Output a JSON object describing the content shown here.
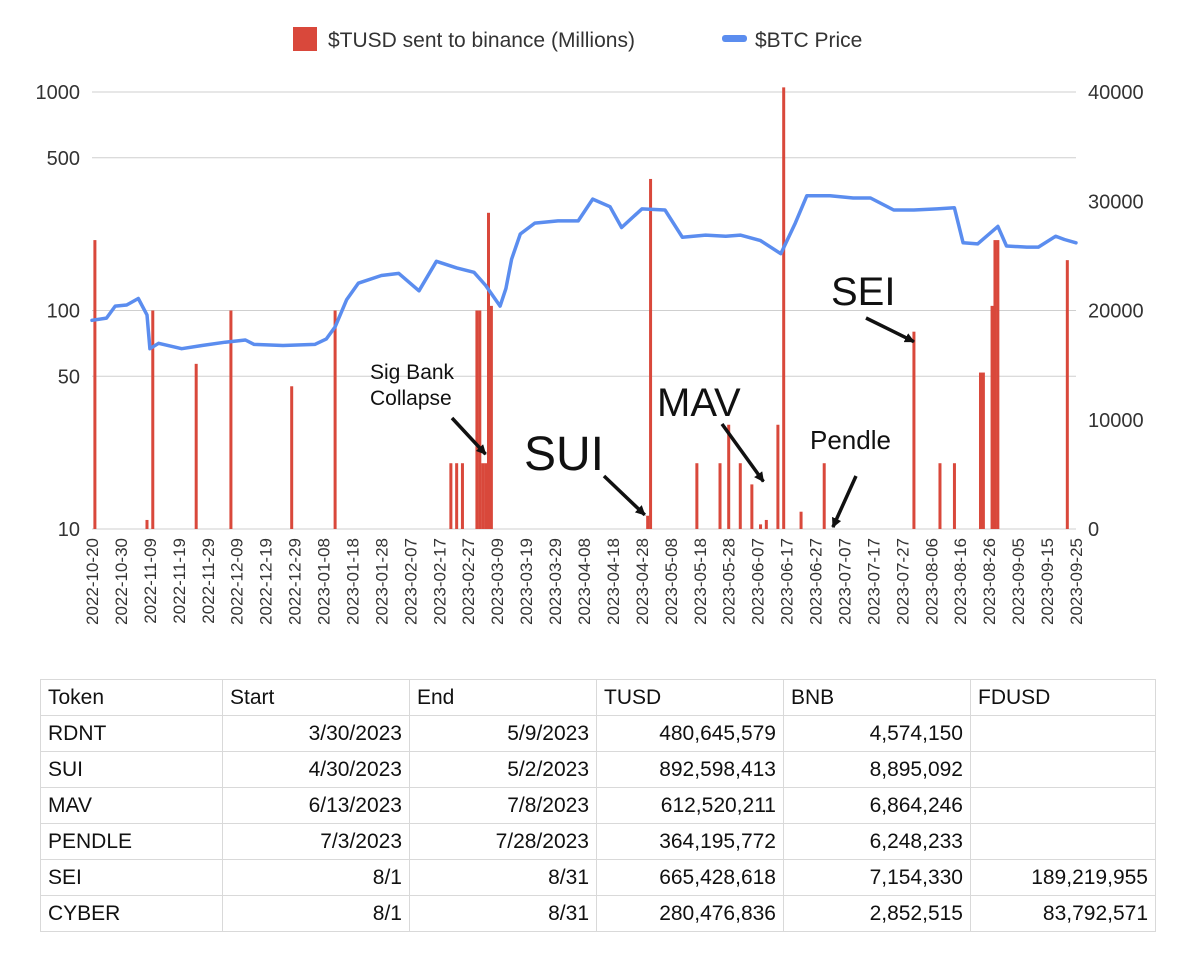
{
  "chart_data": {
    "type": "bar+line",
    "legend": [
      {
        "label": "$TUSD sent to binance (Millions)",
        "color": "#d9483b"
      },
      {
        "label": "$BTC Price",
        "color": "#5b8def"
      }
    ],
    "legend_position": "top",
    "grid": true,
    "left_axis": {
      "scale": "log",
      "range": [
        10,
        1000
      ],
      "ticks": [
        10,
        50,
        100,
        500,
        1000
      ],
      "tick_labels": [
        "10",
        "50",
        "100",
        "500",
        "1000"
      ]
    },
    "right_axis": {
      "scale": "linear",
      "range": [
        0,
        40000
      ],
      "ticks": [
        0,
        10000,
        20000,
        30000,
        40000
      ],
      "tick_labels": [
        "0",
        "10000",
        "20000",
        "30000",
        "40000"
      ]
    },
    "x_range": [
      "2022-10-20",
      "2023-09-25"
    ],
    "x_tick_labels": [
      "2022-10-20",
      "2022-10-30",
      "2022-11-09",
      "2022-11-19",
      "2022-11-29",
      "2022-12-09",
      "2022-12-19",
      "2022-12-29",
      "2023-01-08",
      "2023-01-18",
      "2023-01-28",
      "2023-02-07",
      "2023-02-17",
      "2023-02-27",
      "2023-03-09",
      "2023-03-19",
      "2023-03-29",
      "2023-04-08",
      "2023-04-18",
      "2023-04-28",
      "2023-05-08",
      "2023-05-18",
      "2023-05-28",
      "2023-06-07",
      "2023-06-17",
      "2023-06-27",
      "2023-07-07",
      "2023-07-17",
      "2023-07-27",
      "2023-08-06",
      "2023-08-16",
      "2023-08-26",
      "2023-09-05",
      "2023-09-15",
      "2023-09-25"
    ],
    "series": [
      {
        "name": "$TUSD sent to binance (Millions)",
        "type": "bar",
        "axis": "left",
        "color": "#d9483b",
        "points": [
          [
            "2022-10-21",
            210
          ],
          [
            "2022-11-08",
            11
          ],
          [
            "2022-11-10",
            100
          ],
          [
            "2022-11-25",
            57
          ],
          [
            "2022-12-07",
            100
          ],
          [
            "2022-12-28",
            45
          ],
          [
            "2023-01-12",
            100
          ],
          [
            "2023-02-21",
            20
          ],
          [
            "2023-02-23",
            20
          ],
          [
            "2023-02-25",
            20
          ],
          [
            "2023-03-02",
            100
          ],
          [
            "2023-03-03",
            100
          ],
          [
            "2023-03-04",
            20
          ],
          [
            "2023-03-05",
            20
          ],
          [
            "2023-03-06",
            280
          ],
          [
            "2023-03-07",
            105
          ],
          [
            "2023-04-30",
            11.5
          ],
          [
            "2023-05-01",
            400
          ],
          [
            "2023-05-17",
            20
          ],
          [
            "2023-05-25",
            20
          ],
          [
            "2023-05-28",
            30
          ],
          [
            "2023-06-01",
            20
          ],
          [
            "2023-06-05",
            16
          ],
          [
            "2023-06-08",
            10.5
          ],
          [
            "2023-06-10",
            11
          ],
          [
            "2023-06-14",
            30
          ],
          [
            "2023-06-16",
            1050
          ],
          [
            "2023-06-22",
            12
          ],
          [
            "2023-06-30",
            20
          ],
          [
            "2023-07-31",
            80
          ],
          [
            "2023-08-09",
            20
          ],
          [
            "2023-08-14",
            20
          ],
          [
            "2023-08-23",
            52
          ],
          [
            "2023-08-24",
            52
          ],
          [
            "2023-08-27",
            105
          ],
          [
            "2023-08-28",
            210
          ],
          [
            "2023-08-29",
            210
          ],
          [
            "2023-09-22",
            170
          ]
        ]
      },
      {
        "name": "$BTC Price",
        "type": "line",
        "axis": "right",
        "color": "#5b8def",
        "points": [
          [
            "2022-10-20",
            19100
          ],
          [
            "2022-10-25",
            19300
          ],
          [
            "2022-10-28",
            20400
          ],
          [
            "2022-11-01",
            20500
          ],
          [
            "2022-11-05",
            21100
          ],
          [
            "2022-11-08",
            19600
          ],
          [
            "2022-11-09",
            16500
          ],
          [
            "2022-11-12",
            17000
          ],
          [
            "2022-11-20",
            16500
          ],
          [
            "2022-11-27",
            16800
          ],
          [
            "2022-12-05",
            17100
          ],
          [
            "2022-12-12",
            17300
          ],
          [
            "2022-12-15",
            16900
          ],
          [
            "2022-12-25",
            16800
          ],
          [
            "2023-01-05",
            16900
          ],
          [
            "2023-01-09",
            17400
          ],
          [
            "2023-01-12",
            18500
          ],
          [
            "2023-01-16",
            21000
          ],
          [
            "2023-01-20",
            22500
          ],
          [
            "2023-01-28",
            23200
          ],
          [
            "2023-02-03",
            23400
          ],
          [
            "2023-02-10",
            21800
          ],
          [
            "2023-02-16",
            24500
          ],
          [
            "2023-02-23",
            23900
          ],
          [
            "2023-03-01",
            23500
          ],
          [
            "2023-03-05",
            22300
          ],
          [
            "2023-03-10",
            20400
          ],
          [
            "2023-03-12",
            22000
          ],
          [
            "2023-03-14",
            24700
          ],
          [
            "2023-03-17",
            27000
          ],
          [
            "2023-03-22",
            28000
          ],
          [
            "2023-03-30",
            28200
          ],
          [
            "2023-04-06",
            28200
          ],
          [
            "2023-04-11",
            30200
          ],
          [
            "2023-04-17",
            29500
          ],
          [
            "2023-04-21",
            27600
          ],
          [
            "2023-04-28",
            29300
          ],
          [
            "2023-05-06",
            29200
          ],
          [
            "2023-05-12",
            26700
          ],
          [
            "2023-05-20",
            26900
          ],
          [
            "2023-05-27",
            26800
          ],
          [
            "2023-06-01",
            26900
          ],
          [
            "2023-06-08",
            26400
          ],
          [
            "2023-06-15",
            25200
          ],
          [
            "2023-06-20",
            28000
          ],
          [
            "2023-06-24",
            30500
          ],
          [
            "2023-07-02",
            30500
          ],
          [
            "2023-07-10",
            30300
          ],
          [
            "2023-07-16",
            30300
          ],
          [
            "2023-07-24",
            29200
          ],
          [
            "2023-07-31",
            29200
          ],
          [
            "2023-08-08",
            29300
          ],
          [
            "2023-08-14",
            29400
          ],
          [
            "2023-08-17",
            26200
          ],
          [
            "2023-08-22",
            26100
          ],
          [
            "2023-08-29",
            27700
          ],
          [
            "2023-09-01",
            25900
          ],
          [
            "2023-09-08",
            25800
          ],
          [
            "2023-09-12",
            25800
          ],
          [
            "2023-09-18",
            26800
          ],
          [
            "2023-09-21",
            26500
          ],
          [
            "2023-09-25",
            26200
          ]
        ]
      }
    ],
    "annotations": [
      {
        "text": [
          "Sig Bank",
          "Collapse"
        ],
        "style": "small",
        "target_date": "2023-03-05",
        "target_value": 22
      },
      {
        "text": [
          "SUI"
        ],
        "style": "huge",
        "target_date": "2023-04-29",
        "target_value": 11.6
      },
      {
        "text": [
          "MAV"
        ],
        "style": "big",
        "target_date": "2023-06-09",
        "target_value": 16.5
      },
      {
        "text": [
          "Pendle"
        ],
        "style": "mid",
        "target_date": "2023-07-03",
        "target_value": 10.2
      },
      {
        "text": [
          "SEI"
        ],
        "style": "big",
        "target_date": "2023-07-31",
        "target_value": 72
      }
    ]
  },
  "table": {
    "headers": [
      "Token",
      "Start",
      "End",
      "TUSD",
      "BNB",
      "FDUSD"
    ],
    "rows": [
      [
        "RDNT",
        "3/30/2023",
        "5/9/2023",
        "480,645,579",
        "4,574,150",
        ""
      ],
      [
        "SUI",
        "4/30/2023",
        "5/2/2023",
        "892,598,413",
        "8,895,092",
        ""
      ],
      [
        "MAV",
        "6/13/2023",
        "7/8/2023",
        "612,520,211",
        "6,864,246",
        ""
      ],
      [
        "PENDLE",
        "7/3/2023",
        "7/28/2023",
        "364,195,772",
        "6,248,233",
        ""
      ],
      [
        "SEI",
        "8/1",
        "8/31",
        "665,428,618",
        "7,154,330",
        "189,219,955"
      ],
      [
        "CYBER",
        "8/1",
        "8/31",
        "280,476,836",
        "2,852,515",
        "83,792,571"
      ]
    ]
  }
}
